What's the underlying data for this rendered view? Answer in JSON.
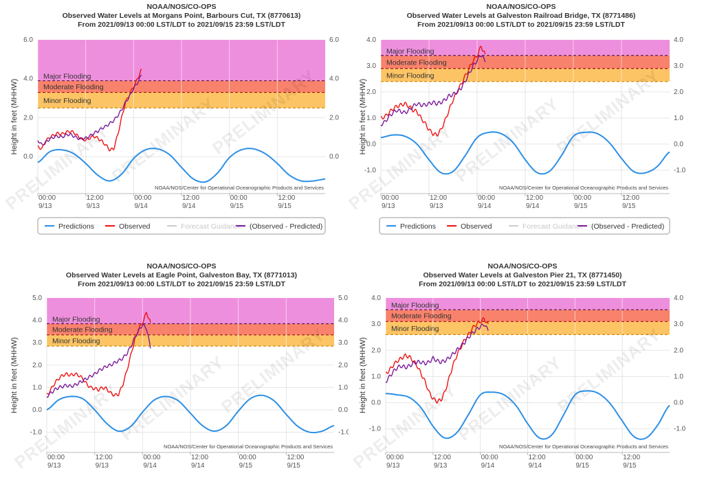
{
  "common": {
    "agency": "NOAA/NOS/CO-OPS",
    "period": "From 2021/09/13 00:00 LST/LDT to 2021/09/15 23:59 LST/LDT",
    "credit": "NOAA/NOS/Center for Operational Oceanographic Products and Services",
    "watermark": "PRELIMINARY",
    "ylabel": "Height in feet (MHHW)",
    "flood_labels": {
      "major": "Major Flooding",
      "moderate": "Moderate Flooding",
      "minor": "Minor Flooding"
    },
    "legend": [
      "Predictions",
      "Observed",
      "Forecast Guidance",
      "(Observed - Predicted)"
    ],
    "colors": {
      "predictions": "#2b8fe6",
      "observed": "#ee1111",
      "forecast": "#cccccc",
      "residual": "#7a1a99",
      "major_band": "#ee8fdd",
      "moderate_band": "#f8826c",
      "minor_band": "#fcc464"
    },
    "x_ticks": [
      {
        "time": "00:00",
        "date": "9/13"
      },
      {
        "time": "12:00",
        "date": "9/13"
      },
      {
        "time": "00:00",
        "date": "9/14"
      },
      {
        "time": "12:00",
        "date": "9/14"
      },
      {
        "time": "00:00",
        "date": "9/15"
      },
      {
        "time": "12:00",
        "date": "9/15"
      }
    ]
  },
  "chart_data": [
    {
      "type": "line",
      "title": "Observed Water Levels at Morgans Point, Barbours Cut, TX (8770613)",
      "ylabel": "Height in feet (MHHW)",
      "ylim": [
        -1.9,
        6.0
      ],
      "y_ticks": [
        0.0,
        2.0,
        4.0,
        6.0
      ],
      "right_axis": true,
      "show_legend": true,
      "xlim_hours": [
        0,
        72
      ],
      "thresholds": {
        "major": 3.9,
        "moderate": 3.3,
        "minor": 2.5
      },
      "series": [
        {
          "name": "Predictions",
          "x": [
            0,
            3,
            6,
            9,
            12,
            15,
            18,
            21,
            24,
            27,
            30,
            33,
            36,
            39,
            42,
            45,
            48,
            51,
            54,
            57,
            60,
            63,
            66,
            69,
            72
          ],
          "values": [
            -0.3,
            0.25,
            0.35,
            0.15,
            -0.35,
            -0.95,
            -1.25,
            -0.9,
            -0.1,
            0.35,
            0.4,
            0.1,
            -0.55,
            -1.15,
            -1.3,
            -0.85,
            -0.05,
            0.35,
            0.4,
            0.15,
            -0.35,
            -0.95,
            -1.25,
            -1.25,
            -1.15
          ]
        },
        {
          "name": "Observed",
          "x": [
            0,
            1,
            2,
            3,
            4,
            5,
            6,
            7,
            8,
            9,
            10,
            11,
            12,
            13,
            14,
            15,
            16,
            17,
            18,
            19,
            20,
            21,
            22,
            23,
            24,
            25,
            26
          ],
          "values": [
            0.5,
            0.4,
            0.8,
            1.0,
            1.1,
            1.2,
            1.15,
            1.25,
            1.3,
            1.25,
            1.05,
            0.9,
            0.85,
            0.95,
            1.05,
            0.95,
            0.8,
            0.6,
            0.35,
            0.4,
            1.1,
            2.0,
            2.8,
            3.2,
            3.6,
            4.0,
            4.5
          ]
        },
        {
          "name": "(Observed - Predicted)",
          "x": [
            0,
            1,
            2,
            3,
            4,
            5,
            6,
            7,
            8,
            9,
            10,
            11,
            12,
            13,
            14,
            15,
            16,
            17,
            18,
            19,
            20,
            21,
            22,
            23,
            24,
            25,
            26
          ],
          "values": [
            0.85,
            0.6,
            0.75,
            0.9,
            1.0,
            1.05,
            1.0,
            1.1,
            1.15,
            1.05,
            0.95,
            0.9,
            0.95,
            1.05,
            1.2,
            1.3,
            1.45,
            1.55,
            1.7,
            1.85,
            2.1,
            2.4,
            2.8,
            3.1,
            3.5,
            3.8,
            4.2
          ]
        }
      ]
    },
    {
      "type": "line",
      "title": "Observed Water Levels at Galveston Railroad Bridge, TX (8771486)",
      "ylabel": "Height in feet (MHHW)",
      "ylim": [
        -1.9,
        4.0
      ],
      "y_ticks": [
        -1.0,
        0.0,
        1.0,
        2.0,
        3.0,
        4.0
      ],
      "right_axis": true,
      "show_legend": true,
      "xlim_hours": [
        0,
        72
      ],
      "thresholds": {
        "major": 3.4,
        "moderate": 2.9,
        "minor": 2.4
      },
      "series": [
        {
          "name": "Predictions",
          "x": [
            0,
            3,
            6,
            9,
            12,
            15,
            18,
            21,
            24,
            27,
            30,
            33,
            36,
            39,
            42,
            45,
            48,
            51,
            54,
            57,
            60,
            63,
            66,
            69,
            72
          ],
          "values": [
            0.25,
            0.35,
            0.3,
            0.0,
            -0.6,
            -1.1,
            -1.05,
            -0.45,
            0.25,
            0.45,
            0.4,
            0.05,
            -0.6,
            -1.1,
            -1.05,
            -0.45,
            0.3,
            0.45,
            0.4,
            0.05,
            -0.55,
            -1.05,
            -1.1,
            -0.85,
            -0.3
          ]
        },
        {
          "name": "Observed",
          "x": [
            0,
            1,
            2,
            3,
            4,
            5,
            6,
            7,
            8,
            9,
            10,
            11,
            12,
            13,
            14,
            15,
            16,
            17,
            18,
            19,
            20,
            21,
            22,
            23,
            24,
            25,
            26
          ],
          "values": [
            1.0,
            1.05,
            1.2,
            1.35,
            1.45,
            1.5,
            1.55,
            1.45,
            1.3,
            1.25,
            1.0,
            0.8,
            0.55,
            0.4,
            0.35,
            0.55,
            0.9,
            1.3,
            1.7,
            2.0,
            2.3,
            2.6,
            2.9,
            3.2,
            3.4,
            3.75,
            3.45
          ]
        },
        {
          "name": "(Observed - Predicted)",
          "x": [
            0,
            1,
            2,
            3,
            4,
            5,
            6,
            7,
            8,
            9,
            10,
            11,
            12,
            13,
            14,
            15,
            16,
            17,
            18,
            19,
            20,
            21,
            22,
            23,
            24,
            25,
            26
          ],
          "values": [
            0.75,
            0.85,
            1.05,
            1.2,
            1.3,
            1.25,
            1.2,
            1.3,
            1.45,
            1.55,
            1.5,
            1.5,
            1.55,
            1.6,
            1.55,
            1.6,
            1.7,
            1.85,
            1.9,
            2.0,
            2.15,
            2.4,
            2.7,
            3.0,
            3.2,
            3.45,
            3.15
          ]
        }
      ]
    },
    {
      "type": "line",
      "title": "Observed Water Levels at Eagle Point, Galveston Bay, TX (8771013)",
      "ylabel": "Height in feet (MHHW)",
      "ylim": [
        -1.9,
        5.0
      ],
      "y_ticks": [
        -1.0,
        0.0,
        1.0,
        2.0,
        3.0,
        4.0,
        5.0
      ],
      "right_axis": true,
      "show_legend": false,
      "xlim_hours": [
        0,
        72
      ],
      "thresholds": {
        "major": 3.85,
        "moderate": 3.35,
        "minor": 2.85
      },
      "series": [
        {
          "name": "Predictions",
          "x": [
            0,
            3,
            6,
            9,
            12,
            15,
            18,
            21,
            24,
            27,
            30,
            33,
            36,
            39,
            42,
            45,
            48,
            51,
            54,
            57,
            60,
            63,
            66,
            69,
            72
          ],
          "values": [
            0.0,
            0.45,
            0.6,
            0.5,
            0.0,
            -0.6,
            -0.95,
            -0.75,
            -0.1,
            0.45,
            0.6,
            0.4,
            -0.15,
            -0.7,
            -0.95,
            -0.7,
            -0.05,
            0.5,
            0.65,
            0.4,
            -0.2,
            -0.75,
            -1.0,
            -0.95,
            -0.7
          ]
        },
        {
          "name": "Observed",
          "x": [
            0,
            1,
            2,
            3,
            4,
            5,
            6,
            7,
            8,
            9,
            10,
            11,
            12,
            13,
            14,
            15,
            16,
            17,
            18,
            19,
            20,
            21,
            22,
            23,
            24,
            25,
            26
          ],
          "values": [
            0.65,
            0.9,
            1.2,
            1.4,
            1.55,
            1.6,
            1.55,
            1.6,
            1.55,
            1.4,
            1.15,
            1.0,
            0.95,
            0.9,
            1.0,
            0.95,
            0.75,
            0.65,
            0.7,
            1.1,
            1.7,
            2.4,
            3.1,
            3.6,
            3.9,
            4.35,
            3.9
          ]
        },
        {
          "name": "(Observed - Predicted)",
          "x": [
            0,
            1,
            2,
            3,
            4,
            5,
            6,
            7,
            8,
            9,
            10,
            11,
            12,
            13,
            14,
            15,
            16,
            17,
            18,
            19,
            20,
            21,
            22,
            23,
            24,
            25,
            26
          ],
          "values": [
            0.6,
            0.75,
            0.9,
            1.0,
            1.05,
            1.1,
            1.05,
            1.1,
            1.2,
            1.3,
            1.4,
            1.5,
            1.6,
            1.75,
            1.85,
            1.95,
            2.0,
            2.1,
            2.2,
            2.3,
            2.5,
            2.8,
            3.2,
            3.55,
            3.8,
            3.65,
            2.75
          ]
        }
      ]
    },
    {
      "type": "line",
      "title": "Observed Water Levels at Galveston Pier 21, TX (8771450)",
      "ylabel": "Height in feet (MHHW)",
      "ylim": [
        -1.9,
        4.0
      ],
      "y_ticks": [
        -1.0,
        0.0,
        1.0,
        2.0,
        3.0,
        4.0
      ],
      "right_axis": true,
      "show_legend": false,
      "xlim_hours": [
        0,
        72
      ],
      "thresholds": {
        "major": 3.55,
        "moderate": 3.1,
        "minor": 2.6
      },
      "series": [
        {
          "name": "Predictions",
          "x": [
            0,
            3,
            6,
            9,
            12,
            15,
            18,
            21,
            24,
            27,
            30,
            33,
            36,
            39,
            42,
            45,
            48,
            51,
            54,
            57,
            60,
            63,
            66,
            69,
            72
          ],
          "values": [
            0.35,
            0.3,
            0.2,
            -0.2,
            -0.9,
            -1.35,
            -1.15,
            -0.45,
            0.3,
            0.4,
            0.3,
            -0.1,
            -0.8,
            -1.35,
            -1.25,
            -0.5,
            0.3,
            0.45,
            0.35,
            -0.05,
            -0.7,
            -1.3,
            -1.35,
            -0.85,
            -0.1
          ]
        },
        {
          "name": "Observed",
          "x": [
            0,
            1,
            2,
            3,
            4,
            5,
            6,
            7,
            8,
            9,
            10,
            11,
            12,
            13,
            14,
            15,
            16,
            17,
            18,
            19,
            20,
            21,
            22,
            23,
            24,
            25,
            26
          ],
          "values": [
            1.1,
            1.25,
            1.45,
            1.6,
            1.7,
            1.8,
            1.75,
            1.6,
            1.4,
            1.1,
            0.8,
            0.4,
            0.15,
            0.05,
            0.1,
            0.4,
            0.9,
            1.4,
            1.8,
            2.1,
            2.4,
            2.6,
            2.85,
            3.0,
            3.1,
            3.2,
            3.0
          ]
        },
        {
          "name": "(Observed - Predicted)",
          "x": [
            0,
            1,
            2,
            3,
            4,
            5,
            6,
            7,
            8,
            9,
            10,
            11,
            12,
            13,
            14,
            15,
            16,
            17,
            18,
            19,
            20,
            21,
            22,
            23,
            24,
            25,
            26
          ],
          "values": [
            0.8,
            1.0,
            1.2,
            1.35,
            1.4,
            1.35,
            1.4,
            1.5,
            1.55,
            1.55,
            1.5,
            1.55,
            1.7,
            1.6,
            1.55,
            1.6,
            1.7,
            1.85,
            2.0,
            2.15,
            2.3,
            2.5,
            2.65,
            2.8,
            2.9,
            3.0,
            2.75
          ]
        }
      ]
    }
  ]
}
